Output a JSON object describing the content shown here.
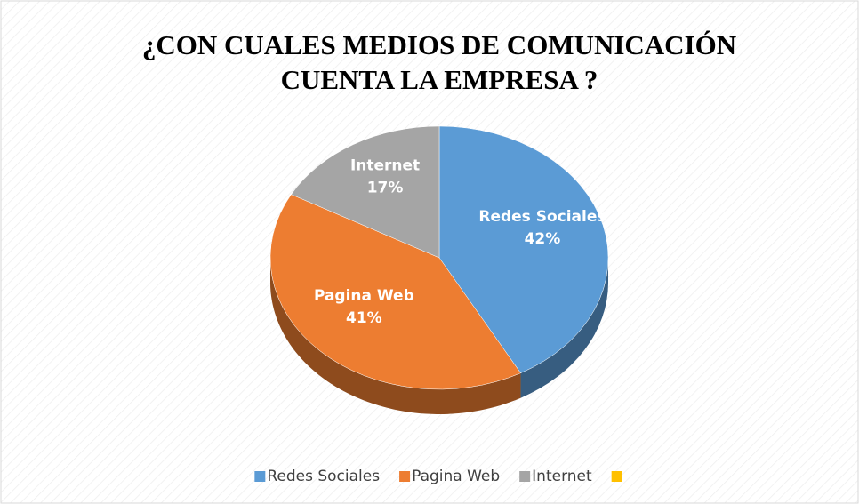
{
  "chart_data": {
    "type": "pie",
    "title": [
      "¿CON CUALES MEDIOS DE COMUNICACIÓN",
      "CUENTA LA EMPRESA ?"
    ],
    "categories": [
      "Redes Sociales",
      "Pagina Web",
      "Internet",
      null
    ],
    "values": [
      42,
      41,
      17,
      0
    ],
    "value_labels": [
      "42%",
      "41%",
      "17%",
      null
    ],
    "colors": [
      "#5b9bd5",
      "#ed7d31",
      "#a5a5a5",
      "#ffc000"
    ],
    "legend": "bottom"
  }
}
